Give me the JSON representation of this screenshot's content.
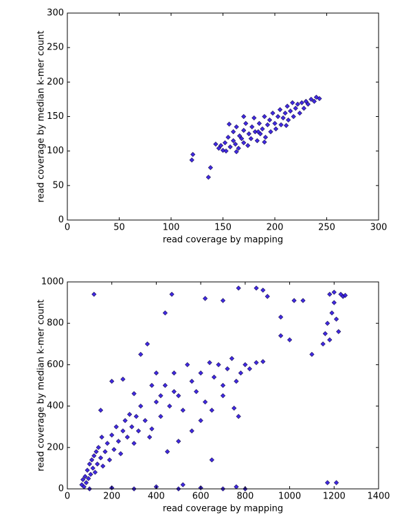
{
  "chart_data": [
    {
      "type": "scatter",
      "xlabel": "read coverage by mapping",
      "ylabel": "read coverage by median k-mer count",
      "color": "#2b12e0",
      "edgecolor": "#1a1050",
      "xlim": [
        0,
        300
      ],
      "ylim": [
        0,
        300
      ],
      "xticks": [
        0,
        50,
        100,
        150,
        200,
        250,
        300
      ],
      "yticks": [
        0,
        50,
        100,
        150,
        200,
        250,
        300
      ],
      "x": [
        120,
        121,
        136,
        138,
        143,
        146,
        148,
        150,
        152,
        155,
        153,
        157,
        160,
        160,
        162,
        163,
        165,
        166,
        168,
        170,
        170,
        172,
        174,
        175,
        177,
        178,
        180,
        181,
        183,
        185,
        186,
        188,
        190,
        191,
        193,
        195,
        196,
        198,
        200,
        201,
        203,
        205,
        206,
        208,
        210,
        212,
        213,
        215,
        217,
        218,
        220,
        222,
        224,
        226,
        228,
        230,
        232,
        235,
        238,
        240,
        243,
        156,
        184,
        190,
        163,
        170,
        211
      ],
      "values": [
        87,
        95,
        62,
        76,
        110,
        104,
        108,
        101,
        112,
        120,
        100,
        106,
        115,
        128,
        110,
        135,
        104,
        122,
        118,
        112,
        130,
        140,
        108,
        125,
        118,
        135,
        148,
        128,
        115,
        140,
        125,
        132,
        150,
        120,
        138,
        145,
        128,
        155,
        140,
        132,
        150,
        160,
        138,
        148,
        155,
        165,
        145,
        158,
        170,
        150,
        162,
        168,
        155,
        170,
        162,
        172,
        168,
        175,
        172,
        178,
        176,
        139,
        128,
        113,
        99,
        150,
        137
      ]
    },
    {
      "type": "scatter",
      "xlabel": "read coverage by mapping",
      "ylabel": "read coverage by median k-mer count",
      "color": "#2b12e0",
      "edgecolor": "#1a1050",
      "xlim": [
        0,
        1400
      ],
      "ylim": [
        0,
        1000
      ],
      "xticks": [
        0,
        200,
        400,
        600,
        800,
        1000,
        1200,
        1400
      ],
      "yticks": [
        0,
        200,
        400,
        600,
        800,
        1000
      ],
      "x": [
        65,
        70,
        75,
        80,
        85,
        90,
        95,
        100,
        105,
        110,
        115,
        120,
        125,
        130,
        135,
        140,
        150,
        155,
        160,
        170,
        180,
        190,
        200,
        210,
        220,
        230,
        240,
        250,
        260,
        270,
        280,
        290,
        300,
        310,
        320,
        330,
        350,
        370,
        380,
        400,
        420,
        440,
        460,
        480,
        500,
        520,
        540,
        560,
        580,
        600,
        620,
        640,
        660,
        680,
        700,
        720,
        740,
        760,
        780,
        800,
        820,
        850,
        880,
        700,
        750,
        770,
        650,
        600,
        560,
        500,
        450,
        480,
        420,
        400,
        380,
        360,
        330,
        300,
        250,
        200,
        150,
        120,
        470,
        620,
        700,
        770,
        850,
        880,
        900,
        960,
        1020,
        1060,
        960,
        1000,
        1100,
        1150,
        1160,
        1170,
        1180,
        1190,
        1200,
        1210,
        1220,
        1230,
        1240,
        1250,
        1180,
        1200,
        1170,
        1210,
        650,
        100,
        200,
        300,
        400,
        500,
        600,
        700,
        760,
        800,
        440,
        520
      ],
      "values": [
        20,
        45,
        10,
        60,
        30,
        90,
        50,
        120,
        70,
        140,
        100,
        160,
        80,
        180,
        120,
        200,
        150,
        250,
        110,
        180,
        220,
        140,
        260,
        190,
        300,
        230,
        170,
        280,
        330,
        250,
        360,
        300,
        220,
        350,
        280,
        400,
        330,
        250,
        290,
        420,
        350,
        500,
        400,
        560,
        450,
        380,
        600,
        520,
        470,
        560,
        420,
        610,
        540,
        600,
        500,
        580,
        630,
        520,
        560,
        600,
        580,
        610,
        615,
        450,
        390,
        350,
        380,
        330,
        280,
        230,
        180,
        470,
        450,
        560,
        500,
        700,
        650,
        460,
        530,
        520,
        380,
        940,
        940,
        920,
        910,
        970,
        970,
        960,
        930,
        830,
        910,
        910,
        740,
        720,
        650,
        700,
        750,
        800,
        720,
        850,
        900,
        820,
        760,
        940,
        930,
        935,
        940,
        950,
        30,
        30,
        140,
        0,
        5,
        0,
        10,
        0,
        5,
        0,
        10,
        0,
        850,
        20
      ]
    }
  ]
}
